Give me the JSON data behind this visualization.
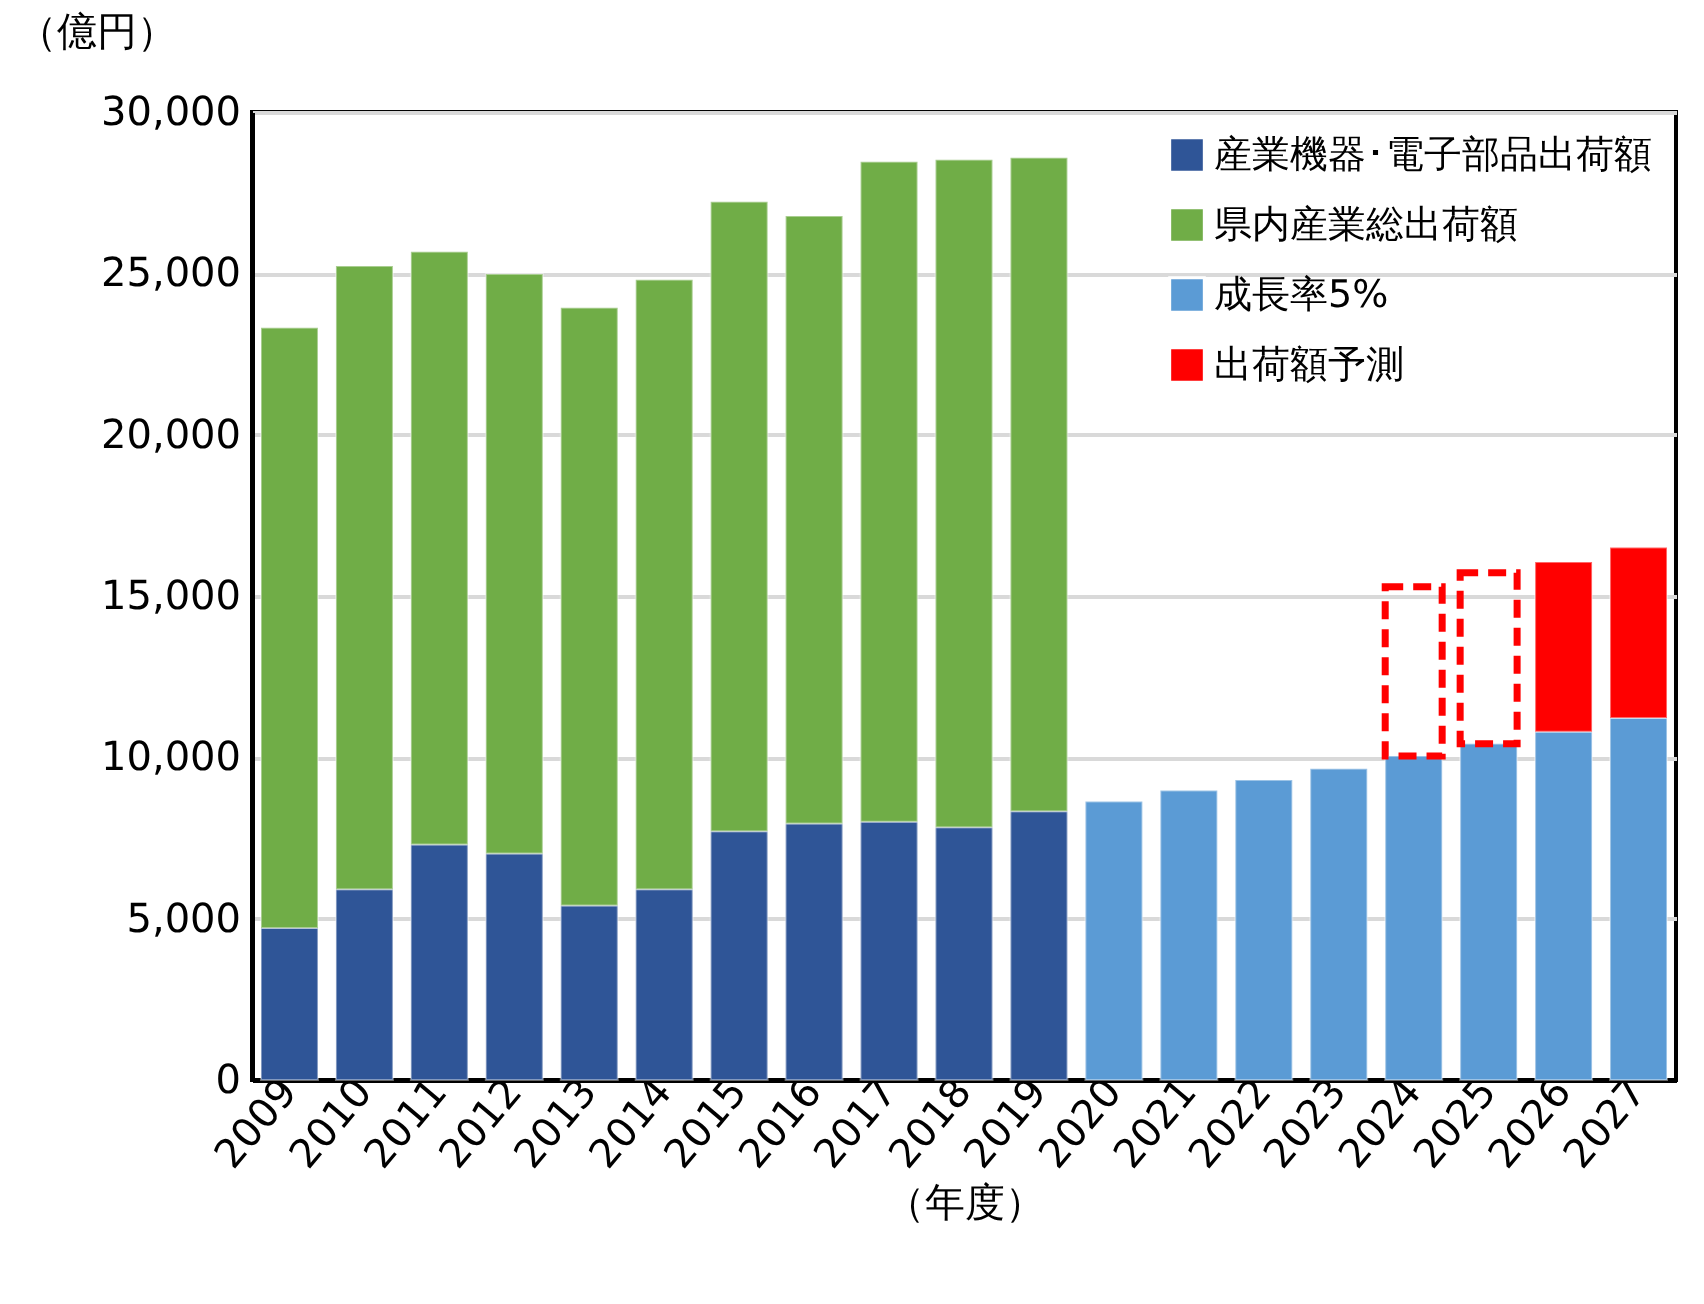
{
  "chart_data": {
    "type": "bar",
    "stacked": true,
    "xlabel": "（年度）",
    "ylabel": "（億円）",
    "categories": [
      "2009",
      "2010",
      "2011",
      "2012",
      "2013",
      "2014",
      "2015",
      "2016",
      "2017",
      "2018",
      "2019",
      "2020",
      "2021",
      "2022",
      "2023",
      "2024",
      "2025",
      "2026",
      "2027"
    ],
    "series": [
      {
        "name": "産業機器･電子部品出荷額",
        "color": "#2f5597",
        "values": [
          4710,
          5910,
          7300,
          7020,
          5410,
          5910,
          7710,
          7950,
          8000,
          7830,
          8330,
          null,
          null,
          null,
          null,
          null,
          null,
          null,
          null
        ]
      },
      {
        "name": "県内産業総出荷額",
        "color": "#70ad47",
        "values": [
          18600,
          19320,
          18370,
          17960,
          18520,
          18890,
          19510,
          18830,
          20460,
          20690,
          20250,
          null,
          null,
          null,
          null,
          null,
          null,
          null,
          null
        ]
      },
      {
        "name": "成長率5%",
        "color": "#5b9bd5",
        "values": [
          null,
          null,
          null,
          null,
          null,
          null,
          null,
          null,
          null,
          null,
          null,
          8630,
          8970,
          9300,
          9650,
          10040,
          10420,
          10790,
          11220
        ]
      },
      {
        "name": "出荷額予測",
        "color": "#ff0000",
        "line_style": "dashed",
        "values": [
          null,
          null,
          null,
          null,
          null,
          null,
          null,
          null,
          null,
          null,
          null,
          null,
          null,
          null,
          null,
          5250,
          5300,
          null,
          null
        ]
      },
      {
        "color": "#ff0000",
        "values": [
          null,
          null,
          null,
          null,
          null,
          null,
          null,
          null,
          null,
          null,
          null,
          null,
          null,
          null,
          null,
          null,
          null,
          5260,
          5280
        ]
      }
    ],
    "ylim": [
      0,
      30000
    ],
    "yticks": [
      0,
      {
        "value": 5000,
        "label": "5,000"
      },
      {
        "value": 10000,
        "label": "10,000"
      },
      {
        "value": 15000,
        "label": "15,000"
      },
      {
        "value": 20000,
        "label": "20,000"
      },
      {
        "value": 25000,
        "label": "25,000"
      },
      {
        "value": 30000,
        "label": "30,000"
      }
    ],
    "grid": "y",
    "legend": "top right"
  }
}
